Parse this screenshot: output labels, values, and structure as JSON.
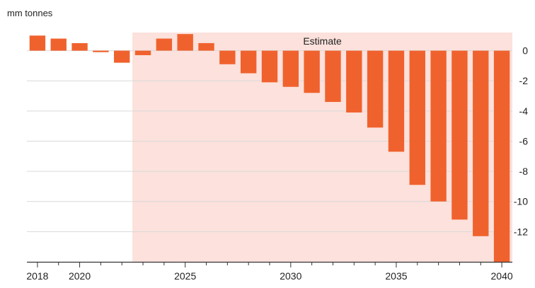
{
  "chart_data": {
    "type": "bar",
    "unit_label": "mm tonnes",
    "annotation": "Estimate",
    "estimate_start": 2023,
    "x": [
      2018,
      2019,
      2020,
      2021,
      2022,
      2023,
      2024,
      2025,
      2026,
      2027,
      2028,
      2029,
      2030,
      2031,
      2032,
      2033,
      2034,
      2035,
      2036,
      2037,
      2038,
      2039,
      2040
    ],
    "values": [
      1.0,
      0.8,
      0.5,
      -0.1,
      -0.8,
      -0.3,
      0.8,
      1.1,
      0.5,
      -0.9,
      -1.5,
      -2.1,
      -2.4,
      -2.8,
      -3.4,
      -4.1,
      -5.1,
      -6.7,
      -8.9,
      -10.0,
      -11.2,
      -12.3,
      -14.0
    ],
    "ylim": [
      -14,
      1.2
    ],
    "y_ticks": [
      0,
      -2,
      -4,
      -6,
      -8,
      -10,
      -12
    ],
    "y_tick_labels": [
      "0",
      "-2",
      "-4",
      "-6",
      "-8",
      "-10",
      "-12"
    ],
    "x_ticks": [
      2018,
      2020,
      2025,
      2030,
      2035,
      2040
    ],
    "x_tick_labels": [
      "2018",
      "2020",
      "2025",
      "2030",
      "2035",
      "2040"
    ],
    "grid": true,
    "colors": {
      "bar": "#f0622d",
      "estimate_band": "#fce1dc",
      "grid": "#d9d9d9",
      "axis": "#333333"
    }
  }
}
